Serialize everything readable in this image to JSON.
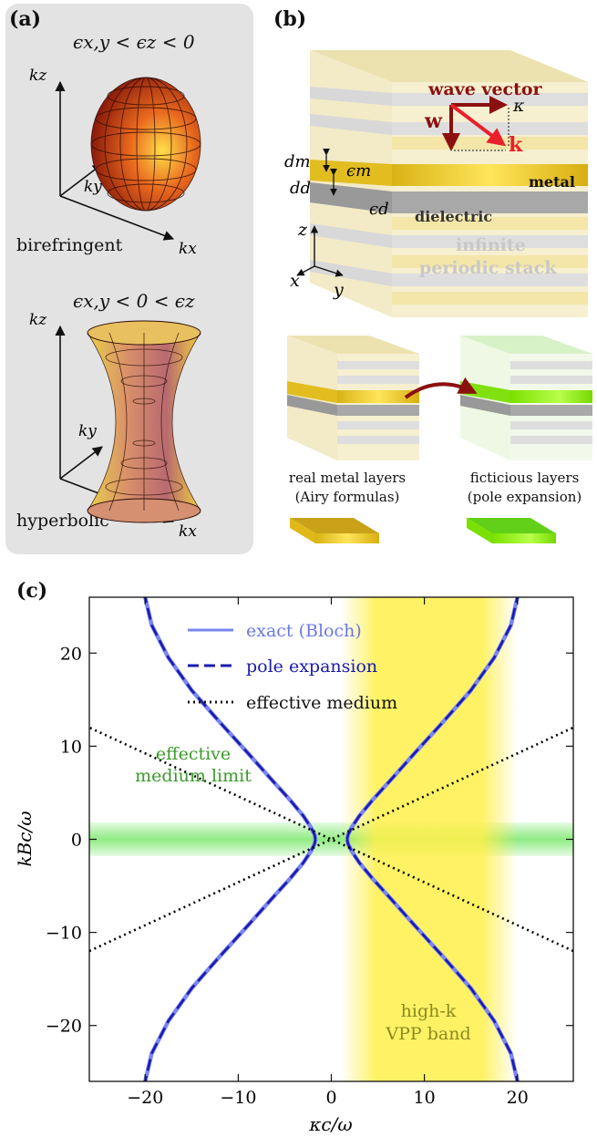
{
  "panel_a": {
    "tag": "(a)",
    "top_condition": "ϵx,y < ϵz < 0",
    "top_label": "birefringent",
    "bottom_condition": "ϵx,y < 0 < ϵz",
    "bottom_label": "hyperbolic",
    "axis_kz": "kz",
    "axis_ky": "ky",
    "axis_kx": "kx"
  },
  "panel_b": {
    "tag": "(b)",
    "wave_vector": "wave vector",
    "w": "w",
    "kappa": "κ",
    "k": "k",
    "dm": "dm",
    "dd": "dd",
    "eps_m": "ϵm",
    "eps_d": "ϵd",
    "metal": "metal",
    "dielectric": "dielectric",
    "infinite": "infinite",
    "periodic_stack": "periodic stack",
    "axis_z": "z",
    "axis_x": "x",
    "axis_y": "y",
    "left_caption_1": "real metal layers",
    "left_caption_2": "(Airy formulas)",
    "right_caption_1": "ficticious layers",
    "right_caption_2": "(pole expansion)",
    "colors": {
      "metal": "#e6c62a",
      "dielectric": "#a6a6a6",
      "ficticious": "#8cf000",
      "arrow": "#8b1010",
      "k_arrow": "#e8202a"
    }
  },
  "panel_c": {
    "tag": "(c)",
    "legend": [
      "exact (Bloch)",
      "pole expansion",
      "effective medium"
    ],
    "green_band_line1": "effective",
    "green_band_line2": "medium limit",
    "yellow_band_line1": "high-k",
    "yellow_band_line2": "VPP band"
  },
  "chart_data": {
    "type": "line",
    "xlabel": "κc/ω",
    "ylabel": "kBc/ω",
    "xlim": [
      -26,
      26
    ],
    "ylim": [
      -26,
      26
    ],
    "xticks": [
      -20,
      -10,
      0,
      10,
      20
    ],
    "yticks": [
      -20,
      -10,
      0,
      10,
      20
    ],
    "xtick_labels": [
      "−20",
      "−10",
      "0",
      "10",
      "20"
    ],
    "ytick_labels": [
      "−20",
      "−10",
      "0",
      "10",
      "20"
    ],
    "series": [
      {
        "name": "exact (Bloch)",
        "color": "#7a86f0",
        "style": "solid",
        "branches": [
          {
            "x": [
              1.7,
              1.8,
              2.2,
              3.0,
              4.5,
              6.5,
              9.0,
              12.0,
              15.0,
              17.5,
              19.3,
              20.0
            ],
            "y": [
              0,
              0.5,
              1.3,
              2.5,
              4.3,
              6.5,
              9.3,
              12.6,
              16.0,
              19.5,
              23.0,
              26.0
            ]
          }
        ]
      },
      {
        "name": "pole expansion",
        "color": "#1a1ab0",
        "style": "dashed",
        "branches": [
          {
            "x": [
              1.7,
              1.8,
              2.2,
              3.0,
              4.5,
              6.5,
              9.0,
              12.0,
              15.0,
              17.5,
              19.3,
              20.0
            ],
            "y": [
              0,
              0.5,
              1.3,
              2.5,
              4.3,
              6.5,
              9.3,
              12.6,
              16.0,
              19.5,
              23.0,
              26.0
            ]
          }
        ]
      },
      {
        "name": "effective medium",
        "color": "#000000",
        "style": "dotted",
        "branches": [
          {
            "x": [
              0,
              26
            ],
            "y": [
              0,
              12
            ]
          }
        ]
      }
    ],
    "bands": [
      {
        "axis": "y",
        "from": -1.8,
        "to": 1.8,
        "color": "#7ce86e"
      },
      {
        "axis": "x",
        "from": 2.5,
        "to": 18.5,
        "color": "#fff04a"
      }
    ]
  }
}
